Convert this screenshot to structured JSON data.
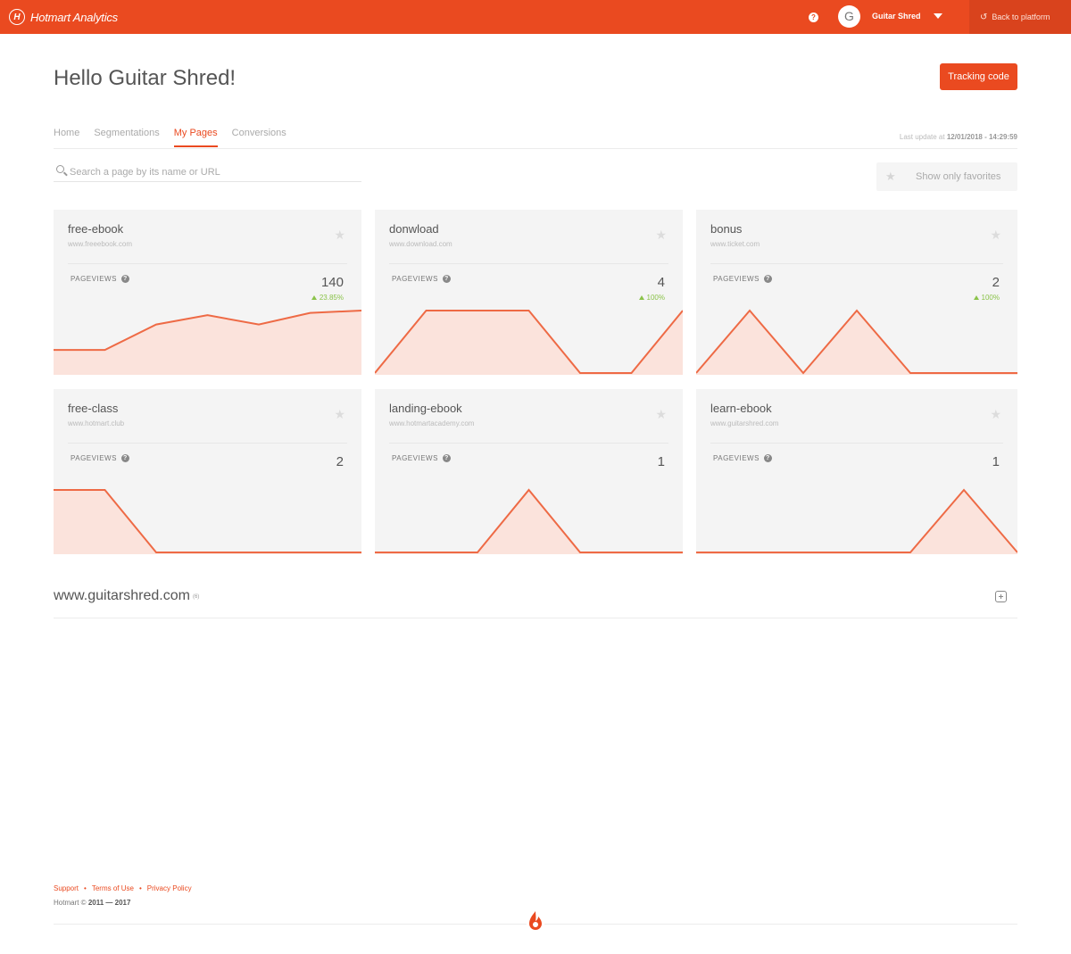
{
  "topbar": {
    "brand": "Hotmart Analytics",
    "brand_icon": "hotmart-logo-icon",
    "help_icon": "?",
    "avatar_initial": "G",
    "user_name": "Guitar Shred",
    "back_label": "Back to platform",
    "back_icon": "back-arrow-icon",
    "accent_color": "#EA4A20"
  },
  "header": {
    "greeting": "Hello Guitar Shred!",
    "tracking_button": "Tracking code"
  },
  "tabs": [
    {
      "label": "Home",
      "active": false
    },
    {
      "label": "Segmentations",
      "active": false
    },
    {
      "label": "My Pages",
      "active": true
    },
    {
      "label": "Conversions",
      "active": false
    }
  ],
  "last_update": {
    "prefix": "Last update at",
    "value": "12/01/2018 - 14:29:59"
  },
  "search": {
    "placeholder": "Search a page by its name or URL"
  },
  "favorites": {
    "label": "Show only favorites"
  },
  "pageviews_label": "PAGEVIEWS",
  "cards": [
    {
      "title": "free-ebook",
      "url": "www.freeebook.com",
      "pageviews": "140",
      "change": "23.85%",
      "series": [
        1,
        1,
        2.1,
        2.5,
        2.1,
        2.6,
        2.7
      ]
    },
    {
      "title": "donwload",
      "url": "www.download.com",
      "pageviews": "4",
      "change": "100%",
      "series": [
        0,
        1,
        1,
        1,
        0,
        0,
        1
      ]
    },
    {
      "title": "bonus",
      "url": "www.ticket.com",
      "pageviews": "2",
      "change": "100%",
      "series": [
        0,
        1,
        0,
        1,
        0,
        0,
        0
      ]
    },
    {
      "title": "free-class",
      "url": "www.hotmart.club",
      "pageviews": "2",
      "change": "",
      "series": [
        1,
        1,
        0,
        0,
        0,
        0,
        0
      ]
    },
    {
      "title": "landing-ebook",
      "url": "www.hotmartacademy.com",
      "pageviews": "1",
      "change": "",
      "series": [
        0,
        0,
        0,
        1,
        0,
        0,
        0
      ]
    },
    {
      "title": "learn-ebook",
      "url": "www.guitarshred.com",
      "pageviews": "1",
      "change": "",
      "series": [
        0,
        0,
        0,
        0,
        0,
        1,
        0
      ]
    }
  ],
  "domain": {
    "name": "www.guitarshred.com",
    "badge": "(6)"
  },
  "footer": {
    "links": [
      "Support",
      "Terms of Use",
      "Privacy Policy"
    ],
    "copyright_prefix": "Hotmart ©",
    "copyright_years": "2011 — 2017"
  }
}
